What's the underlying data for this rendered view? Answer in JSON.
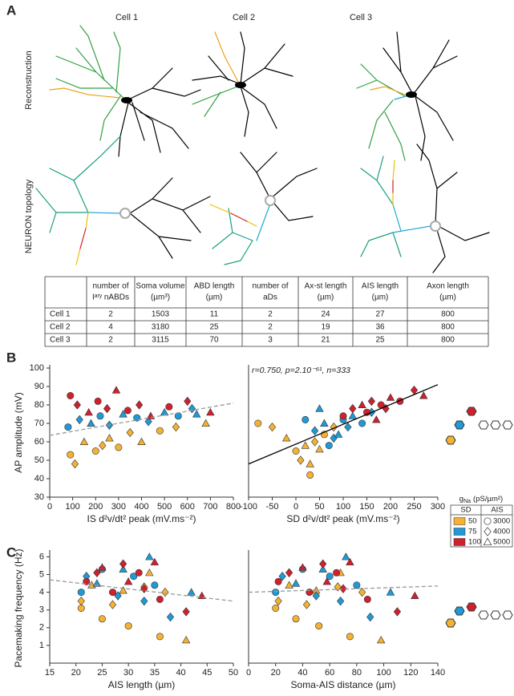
{
  "figure": {
    "panel_labels": [
      "A",
      "B",
      "C"
    ],
    "cells": [
      "Cell 1",
      "Cell 2",
      "Cell 3"
    ],
    "row_labels": [
      "Reconstruction",
      "NEURON topology"
    ],
    "table": {
      "header": [
        {
          "lines": [
            "number of",
            "Iᵃʳʸ nABDs"
          ],
          "color": "#000000"
        },
        {
          "lines": [
            "Soma volume",
            "(µm³)"
          ],
          "color": "#9a9a9a"
        },
        {
          "lines": [
            "ABD length",
            "(µm)"
          ],
          "color": "#1ea7d8"
        },
        {
          "lines": [
            "number of",
            "aDs"
          ],
          "color": "#2e9e3a"
        },
        {
          "lines": [
            "Ax-st length",
            "(µm)"
          ],
          "color": "#f0a020"
        },
        {
          "lines": [
            "AIS length",
            "(µm)"
          ],
          "color": "#d0202e"
        },
        {
          "lines": [
            "Axon length",
            "(µm)"
          ],
          "color": "#e8b400"
        }
      ],
      "rows": [
        [
          "Cell 1",
          2,
          1503,
          11,
          2,
          24,
          27,
          800
        ],
        [
          "Cell 2",
          4,
          3180,
          25,
          2,
          19,
          36,
          800
        ],
        [
          "Cell 3",
          2,
          3115,
          70,
          3,
          21,
          25,
          800
        ]
      ]
    },
    "legend": {
      "title": "g",
      "title_sub": "Na",
      "title_unit": "(pS/µm²)",
      "sd_header": "SD",
      "ais_header": "AIS",
      "sd": [
        {
          "value": 50,
          "color": "#f4b233"
        },
        {
          "value": 75,
          "color": "#1f9ad6"
        },
        {
          "value": 100,
          "color": "#d0202e"
        }
      ],
      "ais": [
        {
          "value": 3000,
          "shape": "circle"
        },
        {
          "value": 4000,
          "shape": "diamond"
        },
        {
          "value": 5000,
          "shape": "triangle"
        }
      ]
    }
  },
  "chart_data": [
    {
      "type": "scatter",
      "xlabel": "IS d²v/dt² peak (mV.ms⁻²)",
      "ylabel": "AP amplitude (mV)",
      "xlim": [
        0,
        800
      ],
      "xticks": [
        0,
        100,
        200,
        300,
        400,
        500,
        600,
        700,
        800
      ],
      "ylim": [
        30,
        100
      ],
      "yticks": [
        30,
        40,
        50,
        60,
        70,
        80,
        90,
        100
      ],
      "trend": {
        "x": [
          0,
          800
        ],
        "y": [
          63.5,
          81
        ],
        "style": "dashed",
        "color": "#999999"
      },
      "series": [
        {
          "x": [
            90,
            110,
            150,
            200,
            230,
            260,
            300,
            350,
            400,
            480,
            550,
            680
          ],
          "y": [
            53,
            48,
            60,
            55,
            58,
            62,
            57,
            65,
            60,
            66,
            68,
            70
          ],
          "ais": [
            3000,
            4000,
            5000,
            3000,
            4000,
            5000,
            3000,
            4000,
            5000,
            3000,
            4000,
            5000
          ]
        },
        {
          "x": [
            80,
            130,
            180,
            220,
            260,
            320,
            380,
            430,
            500,
            560,
            620,
            640
          ],
          "y": [
            68,
            72,
            70,
            74,
            69,
            75,
            73,
            71,
            76,
            74,
            78,
            75
          ],
          "ais": [
            3000,
            4000,
            5000,
            3000,
            4000,
            5000,
            3000,
            4000,
            5000,
            3000,
            4000,
            5000
          ]
        },
        {
          "x": [
            90,
            120,
            170,
            210,
            250,
            290,
            340,
            390,
            440,
            520,
            600,
            700
          ],
          "y": [
            85,
            80,
            76,
            82,
            78,
            88,
            77,
            80,
            74,
            79,
            82,
            76
          ],
          "ais": [
            3000,
            4000,
            5000,
            3000,
            4000,
            5000,
            3000,
            4000,
            5000,
            3000,
            4000,
            5000
          ]
        }
      ]
    },
    {
      "type": "scatter",
      "xlabel": "SD d²v/dt² peak (mV.ms⁻²)",
      "annotation": "r=0.750, p=2.10⁻⁶¹, n=333",
      "xlim": [
        -100,
        300
      ],
      "xticks": [
        -100,
        -50,
        0,
        50,
        100,
        150,
        200,
        250,
        300
      ],
      "ylim": [
        30,
        100
      ],
      "trend": {
        "x": [
          -100,
          300
        ],
        "y": [
          48,
          91
        ],
        "style": "solid",
        "color": "#000000"
      },
      "series": [
        {
          "x": [
            -80,
            -50,
            -20,
            0,
            10,
            20,
            30,
            40,
            50,
            60,
            80,
            30
          ],
          "y": [
            70,
            68,
            62,
            55,
            50,
            58,
            42,
            60,
            56,
            64,
            68,
            48
          ],
          "ais": [
            3000,
            4000,
            5000,
            3000,
            4000,
            5000,
            3000,
            4000,
            5000,
            3000,
            4000,
            5000
          ]
        },
        {
          "x": [
            20,
            40,
            60,
            70,
            80,
            90,
            100,
            110,
            120,
            140,
            160,
            50
          ],
          "y": [
            72,
            66,
            70,
            58,
            62,
            64,
            72,
            68,
            74,
            70,
            76,
            78
          ],
          "ais": [
            3000,
            4000,
            5000,
            3000,
            4000,
            5000,
            3000,
            4000,
            5000,
            3000,
            4000,
            5000
          ]
        },
        {
          "x": [
            100,
            120,
            140,
            150,
            160,
            170,
            180,
            190,
            200,
            220,
            250,
            270
          ],
          "y": [
            74,
            78,
            80,
            76,
            82,
            72,
            80,
            78,
            84,
            82,
            88,
            85
          ],
          "ais": [
            3000,
            4000,
            5000,
            3000,
            4000,
            5000,
            3000,
            4000,
            5000,
            3000,
            4000,
            5000
          ]
        }
      ]
    },
    {
      "type": "scatter",
      "xlabel": "AIS length (µm)",
      "ylabel": "Pacemaking frequency (Hz)",
      "xlim": [
        15,
        50
      ],
      "xticks": [
        15,
        20,
        25,
        30,
        35,
        40,
        45,
        50
      ],
      "ylim": [
        0,
        6.2
      ],
      "yticks": [
        1,
        2,
        3,
        4,
        5,
        6
      ],
      "trend": {
        "x": [
          15,
          50
        ],
        "y": [
          4.7,
          3.5
        ],
        "style": "dashed",
        "color": "#999999"
      },
      "series": [
        {
          "x": [
            21,
            21,
            23,
            25,
            27,
            29,
            30,
            33,
            34,
            36,
            37,
            41
          ],
          "y": [
            3.1,
            3.5,
            4.4,
            2.5,
            3.3,
            4.1,
            2.1,
            4.3,
            5.1,
            1.5,
            4.0,
            1.3
          ],
          "ais": [
            3000,
            4000,
            5000,
            3000,
            4000,
            5000,
            3000,
            4000,
            5000,
            3000,
            4000,
            5000
          ]
        },
        {
          "x": [
            21,
            22,
            24,
            25,
            28,
            29,
            31,
            33,
            34,
            35,
            38,
            42
          ],
          "y": [
            4.0,
            4.9,
            4.5,
            5.3,
            3.8,
            5.3,
            4.9,
            3.5,
            6.0,
            4.4,
            2.6,
            4.0
          ],
          "ais": [
            3000,
            4000,
            5000,
            3000,
            4000,
            5000,
            3000,
            4000,
            5000,
            3000,
            4000,
            5000
          ]
        },
        {
          "x": [
            22,
            24,
            25,
            27,
            29,
            30,
            32,
            33,
            35,
            36,
            41,
            44
          ],
          "y": [
            4.6,
            5.1,
            5.4,
            4.0,
            5.6,
            4.6,
            5.1,
            4.2,
            5.7,
            3.6,
            2.9,
            3.8
          ],
          "ais": [
            3000,
            4000,
            5000,
            3000,
            4000,
            5000,
            3000,
            4000,
            5000,
            3000,
            4000,
            5000
          ]
        }
      ]
    },
    {
      "type": "scatter",
      "xlabel": "Soma-AIS distance (µm)",
      "xlim": [
        0,
        140
      ],
      "xticks": [
        0,
        20,
        40,
        60,
        80,
        100,
        120,
        140
      ],
      "ylim": [
        0,
        6.2
      ],
      "trend": {
        "x": [
          0,
          140
        ],
        "y": [
          4.0,
          4.35
        ],
        "style": "dashed",
        "color": "#999999"
      },
      "series": [
        {
          "x": [
            20,
            22,
            30,
            35,
            43,
            50,
            52,
            66,
            68,
            75,
            84,
            98
          ],
          "y": [
            3.1,
            3.5,
            4.4,
            2.5,
            3.3,
            4.1,
            2.1,
            4.3,
            5.1,
            1.5,
            4.0,
            1.3
          ],
          "ais": [
            3000,
            4000,
            5000,
            3000,
            4000,
            5000,
            3000,
            4000,
            5000,
            3000,
            4000,
            5000
          ]
        },
        {
          "x": [
            20,
            25,
            35,
            40,
            50,
            55,
            60,
            68,
            72,
            80,
            90,
            105
          ],
          "y": [
            4.0,
            4.9,
            4.5,
            5.3,
            3.8,
            5.3,
            4.9,
            3.5,
            6.0,
            4.4,
            2.6,
            4.0
          ],
          "ais": [
            3000,
            4000,
            5000,
            3000,
            4000,
            5000,
            3000,
            4000,
            5000,
            3000,
            4000,
            5000
          ]
        },
        {
          "x": [
            22,
            30,
            40,
            45,
            55,
            58,
            65,
            70,
            75,
            88,
            110,
            123
          ],
          "y": [
            4.6,
            5.1,
            5.4,
            4.0,
            5.6,
            4.6,
            5.1,
            4.2,
            5.7,
            3.6,
            2.9,
            3.8
          ],
          "ais": [
            3000,
            4000,
            5000,
            3000,
            4000,
            5000,
            3000,
            4000,
            5000,
            3000,
            4000,
            5000
          ]
        }
      ]
    }
  ]
}
